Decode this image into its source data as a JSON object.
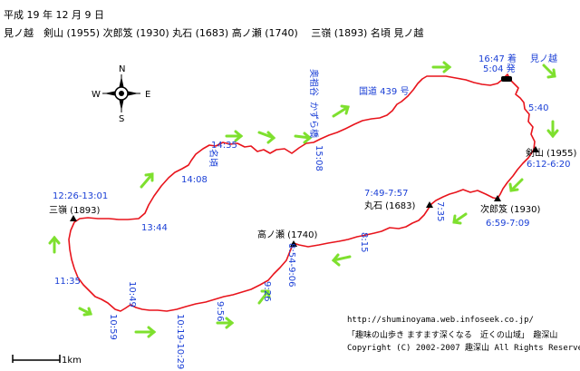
{
  "header": {
    "date": "平成 19 年 12 月 9 日",
    "route": "見ノ越　剣山 (1955)  次郎笈 (1930)  丸石 (1683)  高ノ瀬 (1740)　 三嶺 (1893)  名頃  見ノ越"
  },
  "compass": {
    "n": "N",
    "s": "S",
    "e": "E",
    "w": "W"
  },
  "peaks": {
    "tsurugi": "剣山 (1955)",
    "jiroge": "次郎笈 (1930)",
    "maruishi": "丸石 (1683)",
    "takanose": "高ノ瀬 (1740)",
    "miune": "三嶺 (1893)"
  },
  "places": {
    "minokoshi": "見ノ越",
    "nagoro": "名頃",
    "okuiya_line1": "奥祖谷",
    "okuiya_line2": "かずら橋",
    "route439": "国道 439 号"
  },
  "times": {
    "arrive": "16:47 着",
    "depart": "5:04 発",
    "t540": "5:40",
    "tsurugi": "6:12-6:20",
    "jiroge": "6:59-7:09",
    "maruishi": "7:49-7:57",
    "t735": "7:35",
    "t815": "8:15",
    "takanose": "8:54-9:06",
    "t926": "9:26",
    "t956": "9:56",
    "t1019": "10:19-10:29",
    "t1049": "10:49",
    "t1059": "10:59",
    "t1135": "11:35",
    "t1344": "13:44",
    "miune": "12:26-13:01",
    "t1408": "14:08",
    "t1435": "14:35",
    "t1508": "15:08"
  },
  "scale": {
    "label": "1km"
  },
  "credits": {
    "url": "http://shuminoyama.web.infoseek.co.jp/",
    "title": "「趣味の山歩き ますます深くなる　近くの山域」　趣深山",
    "copyright": "Copyright (C) 2002-2007 趣深山 All Rights Reserved"
  },
  "colors": {
    "route": "#e8141c",
    "arrow": "#7ee02e",
    "time": "#1a3fd6",
    "label": "#000000"
  }
}
